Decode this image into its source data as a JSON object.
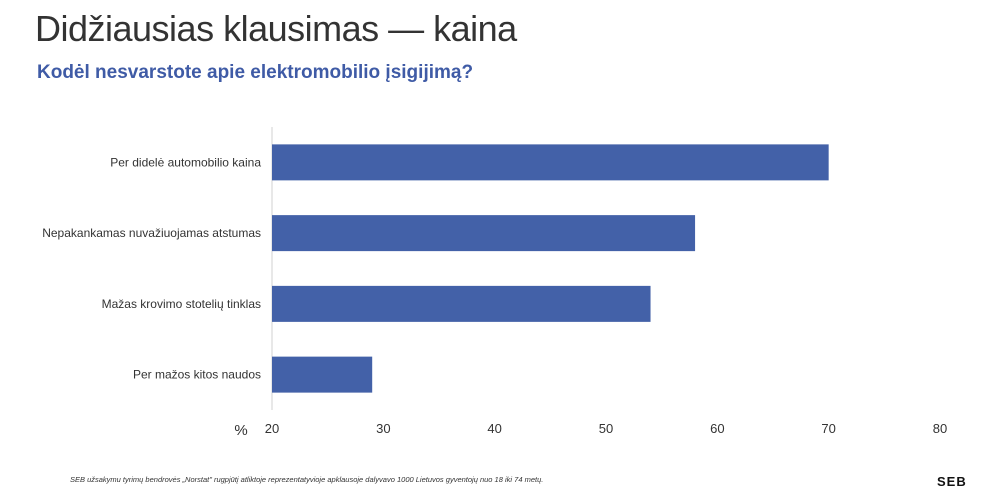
{
  "header": {
    "title": "Didžiausias klausimas — kaina",
    "subtitle": "Kodėl nesvarstote apie elektromobilio įsigijimą?"
  },
  "chart_data": {
    "type": "bar",
    "orientation": "horizontal",
    "categories": [
      "Per didelė automobilio kaina",
      "Nepakankamas nuvažiuojamas atstumas",
      "Mažas krovimo stotelių tinklas",
      "Per mažos kitos naudos"
    ],
    "values": [
      70,
      58,
      54,
      29
    ],
    "xlabel": "%",
    "xlim": [
      20,
      80
    ],
    "xticks": [
      "20",
      "30",
      "40",
      "50",
      "60",
      "70",
      "80"
    ],
    "grid": false,
    "bar_color": "#4361a8"
  },
  "footer": {
    "note": "SEB užsakymu tyrimų bendrovės „Norstat\" rugpjūtį atliktoje reprezentatyvioje apklausoje dalyvavo 1000 Lietuvos gyventojų nuo 18 iki 74 metų.",
    "logo": "SEB"
  },
  "colors": {
    "subtitle": "#3f5ba6",
    "bar": "#4361a8",
    "axis": "#d0d0d0"
  }
}
